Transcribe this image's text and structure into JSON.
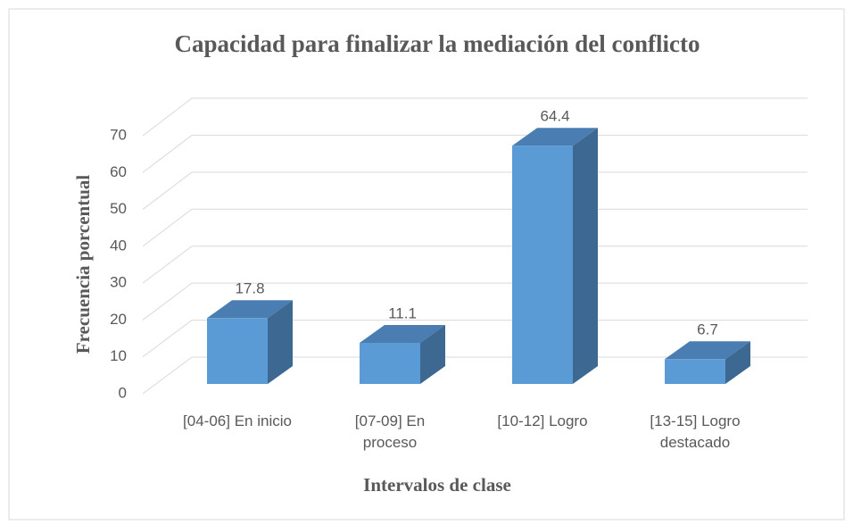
{
  "chart_data": {
    "type": "bar3d",
    "title": "Capacidad para finalizar la mediación del conflicto",
    "x_label": "Intervalos de clase",
    "y_label": "Frecuencia porcentual",
    "categories": [
      "[04-06] En inicio",
      "[07-09] En proceso",
      "[10-12] Logro",
      "[13-15] Logro destacado"
    ],
    "values": [
      17.8,
      11.1,
      64.4,
      6.7
    ],
    "color": "#5b9bd5",
    "ylim": [
      0,
      70
    ],
    "yticks": [
      0,
      10,
      20,
      30,
      40,
      50,
      60,
      70
    ],
    "grid": true
  }
}
